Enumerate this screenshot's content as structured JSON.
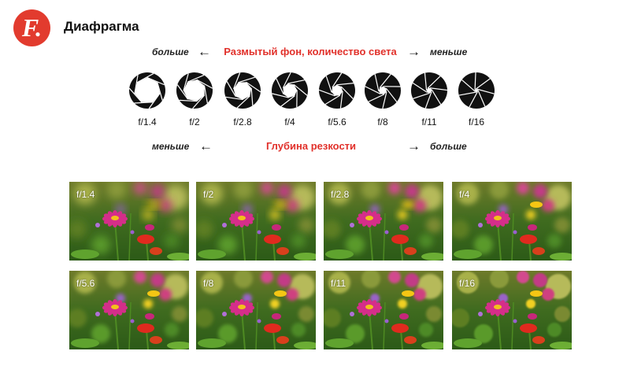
{
  "header": {
    "logo_letter": "F.",
    "title": "Диафрагма",
    "accent_color": "#e23b2e"
  },
  "top_scale": {
    "left_label": "больше",
    "center_label": "Размытый фон, количество света",
    "right_label": "меньше",
    "left_arrow": "←",
    "right_arrow": "→"
  },
  "apertures": [
    {
      "label": "f/1.4",
      "opening": 0.82
    },
    {
      "label": "f/2",
      "opening": 0.7
    },
    {
      "label": "f/2.8",
      "opening": 0.58
    },
    {
      "label": "f/4",
      "opening": 0.46
    },
    {
      "label": "f/5.6",
      "opening": 0.36
    },
    {
      "label": "f/8",
      "opening": 0.26
    },
    {
      "label": "f/11",
      "opening": 0.17
    },
    {
      "label": "f/16",
      "opening": 0.09
    }
  ],
  "bottom_scale": {
    "left_label": "меньше",
    "center_label": "Глубина резкости",
    "right_label": "больше",
    "left_arrow": "←",
    "right_arrow": "→"
  },
  "photos": [
    {
      "label": "f/1.4",
      "blur": 1.0
    },
    {
      "label": "f/2",
      "blur": 0.85
    },
    {
      "label": "f/2.8",
      "blur": 0.7
    },
    {
      "label": "f/4",
      "blur": 0.55
    },
    {
      "label": "f/5.6",
      "blur": 0.42
    },
    {
      "label": "f/8",
      "blur": 0.3
    },
    {
      "label": "f/11",
      "blur": 0.18
    },
    {
      "label": "f/16",
      "blur": 0.08
    }
  ]
}
